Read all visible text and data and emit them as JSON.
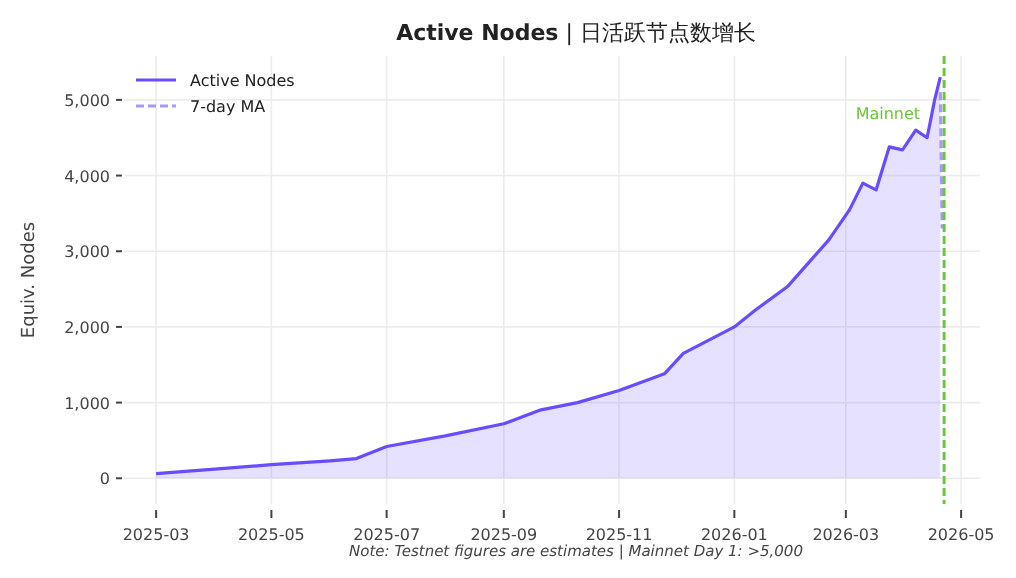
{
  "chart_data": {
    "type": "area",
    "title": "**Active Nodes** | 日活跃节点数增长",
    "ylabel": "Equiv. Nodes",
    "annotations": [
      "Note: Testnet figures are estimates  |  Mainnet Day 1: >5,000"
    ],
    "x": [
      "2025-03-01",
      "2025-04-01",
      "2025-05-01",
      "2025-06-01",
      "2025-06-15",
      "2025-07-01",
      "2025-08-01",
      "2025-09-01",
      "2025-09-20",
      "2025-10-10",
      "2025-11-01",
      "2025-11-25",
      "2025-12-05",
      "2026-01-01",
      "2026-01-12",
      "2026-01-29",
      "2026-02-09",
      "2026-02-20",
      "2026-03-03",
      "2026-03-10",
      "2026-03-17",
      "2026-03-24",
      "2026-03-31",
      "2026-04-07",
      "2026-04-13",
      "2026-04-17",
      "2026-04-20"
    ],
    "series": [
      {
        "name": "Active Nodes",
        "color": "#6a4cff",
        "line_style": "solid",
        "values": [
          60,
          120,
          180,
          230,
          260,
          420,
          560,
          720,
          900,
          1000,
          1160,
          1380,
          1650,
          2000,
          2220,
          2530,
          2840,
          3150,
          3550,
          3900,
          3810,
          4380,
          4340,
          4600,
          4500,
          5000,
          5300
        ]
      },
      {
        "name": "7-day MA",
        "color": "#a898ff",
        "line_style": "dashed",
        "type": "line",
        "x": [
          "2026-04-20",
          "2026-04-21"
        ],
        "values": [
          5100,
          3300
        ]
      }
    ],
    "xlim": [
      "2025-02-12",
      "2026-05-11"
    ],
    "ylim": [
      -340,
      5580
    ],
    "xticks": [
      {
        "value": "2025-03-01",
        "label": "2025-03"
      },
      {
        "value": "2025-05-01",
        "label": "2025-05"
      },
      {
        "value": "2025-07-01",
        "label": "2025-07"
      },
      {
        "value": "2025-09-01",
        "label": "2025-09"
      },
      {
        "value": "2025-11-01",
        "label": "2025-11"
      },
      {
        "value": "2026-01-01",
        "label": "2026-01"
      },
      {
        "value": "2026-03-01",
        "label": "2026-03"
      },
      {
        "value": "2026-05-01",
        "label": "2026-05"
      }
    ],
    "yticks": [
      {
        "value": 0,
        "label": "0"
      },
      {
        "value": 1000,
        "label": "1,000"
      },
      {
        "value": 2000,
        "label": "2,000"
      },
      {
        "value": 3000,
        "label": "3,000"
      },
      {
        "value": 4000,
        "label": "4,000"
      },
      {
        "value": 5000,
        "label": "5,000"
      }
    ],
    "ref_lines": [
      {
        "axis": "x",
        "value": "2026-04-22",
        "label": "Mainnet",
        "color": "#6cc63a",
        "line_style": "dashed"
      }
    ],
    "grid": true,
    "legend": "top left",
    "marker": "none"
  }
}
